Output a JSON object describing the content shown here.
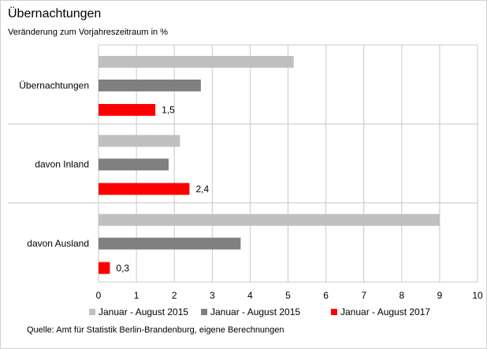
{
  "chart_data": {
    "type": "bar",
    "orientation": "horizontal",
    "title": "Übernachtungen",
    "subtitle": "Veränderung zum Vorjahreszeitraum  in %",
    "source": "Quelle: Amt für Statistik Berlin-Brandenburg, eigene Berechnungen",
    "categories": [
      "Übernachtungen",
      "davon Inland",
      "davon Ausland"
    ],
    "series": [
      {
        "name": "Januar - August 2015",
        "color": "#c0c0c0",
        "values": [
          5.15,
          2.15,
          9.0
        ]
      },
      {
        "name": "Januar - August 2015",
        "color": "#808080",
        "values": [
          2.7,
          1.85,
          3.75
        ]
      },
      {
        "name": "Januar - August 2017",
        "color": "#ff0000",
        "values": [
          1.5,
          2.4,
          0.3
        ],
        "value_labels": [
          "1,5",
          "2,4",
          "0,3"
        ]
      }
    ],
    "xlim": [
      0,
      10
    ],
    "xticks": [
      0,
      1,
      2,
      3,
      4,
      5,
      6,
      7,
      8,
      9,
      10
    ],
    "grid": true,
    "legend": "bottom"
  }
}
